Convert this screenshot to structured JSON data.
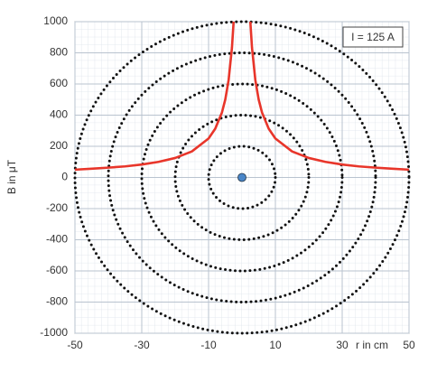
{
  "chart_data": {
    "type": "line",
    "ylabel": "B in μT",
    "xlabel": "r in cm",
    "annotation": "I = 125 A",
    "x": [
      -50,
      -45,
      -40,
      -35,
      -30,
      -25,
      -20,
      -15,
      -10,
      -8,
      -6,
      -5,
      -4,
      -3,
      -2.5,
      null,
      2.5,
      3,
      4,
      5,
      6,
      8,
      10,
      15,
      20,
      25,
      30,
      35,
      40,
      45,
      50
    ],
    "values": [
      50,
      56,
      63,
      71,
      83,
      100,
      125,
      167,
      250,
      313,
      417,
      500,
      625,
      833,
      1000,
      null,
      1000,
      833,
      625,
      500,
      417,
      313,
      250,
      167,
      125,
      100,
      83,
      71,
      63,
      56,
      50
    ],
    "color": "#e8352a",
    "xlim": [
      -50,
      50
    ],
    "xticks": [
      -50,
      -30,
      -10,
      10,
      30,
      50
    ],
    "ylim": [
      -1000,
      1000
    ],
    "yticks": [
      -1000,
      -800,
      -600,
      -400,
      -200,
      0,
      200,
      400,
      600,
      800,
      1000
    ],
    "grid": true
  }
}
